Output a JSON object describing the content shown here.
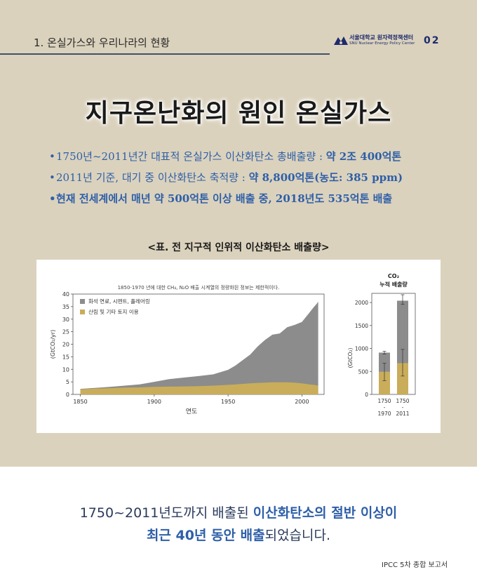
{
  "header": {
    "section_title": "1. 온실가스와 우리나라의 현황",
    "logo_ko": "서울대학교 원자력정책센터",
    "logo_en": "SNU Nuclear Energy Policy Center",
    "page_number": "02"
  },
  "main_title": "지구온난화의 원인 온실가스",
  "bullets": [
    {
      "normal": "1750년~2011년간 대표적 온실가스 이산화탄소 총배출량 : ",
      "bold": "약 2조 400억톤"
    },
    {
      "normal": "2011년 기준, 대기 중 이산화탄소 축적량 : ",
      "bold": "약 8,800억톤(농도: 385 ppm)"
    },
    {
      "normal": "",
      "bold": "현재 전세계에서 매년 약 500억톤 이상 배출 중, 2018년도 535억톤 배출"
    }
  ],
  "table_caption": "<표. 전 지구적 인위적 이산화탄소 배출량>",
  "chart_data": [
    {
      "type": "area",
      "title": "1850-1970 년에 대한 CH₄, N₂O 배출 시계열의 정량화된 정보는 제한적이다.",
      "xlabel": "연도",
      "ylabel": "(GtCO₂/yr)",
      "xlim": [
        1845,
        2015
      ],
      "ylim": [
        0,
        40
      ],
      "x_ticks": [
        "1850",
        "1900",
        "1950",
        "2000"
      ],
      "y_ticks": [
        "0",
        "5",
        "10",
        "15",
        "20",
        "25",
        "30",
        "35",
        "40"
      ],
      "legend": [
        "화석 연료, 시멘트, 플레어링",
        "산림 및 기타 토지 이용"
      ],
      "legend_position": "top-left",
      "colors": {
        "fossil": "#8c8c8c",
        "land": "#c9ad5a"
      },
      "x": [
        1850,
        1860,
        1870,
        1880,
        1890,
        1900,
        1910,
        1920,
        1930,
        1940,
        1950,
        1955,
        1960,
        1965,
        1970,
        1975,
        1980,
        1985,
        1990,
        1995,
        2000,
        2005,
        2008,
        2010,
        2011
      ],
      "series": [
        {
          "name": "산림 및 기타 토지 이용",
          "values": [
            2,
            2.3,
            2.5,
            2.7,
            2.8,
            3.0,
            3.1,
            3.2,
            3.3,
            3.5,
            3.8,
            4.0,
            4.2,
            4.4,
            4.6,
            4.7,
            4.8,
            4.8,
            4.8,
            4.7,
            4.4,
            4.0,
            3.8,
            3.6,
            3.5
          ]
        },
        {
          "name": "화석 연료, 시멘트, 플레어링",
          "values": [
            0.2,
            0.3,
            0.5,
            0.8,
            1.2,
            2.0,
            3.0,
            3.5,
            4.0,
            4.5,
            6.0,
            7.5,
            9.5,
            11.5,
            14.5,
            17.0,
            19.0,
            19.5,
            22.0,
            23.0,
            24.5,
            28.5,
            31.0,
            32.5,
            33.5
          ]
        }
      ]
    },
    {
      "type": "bar",
      "title": "CO₂ 누적 배출량",
      "ylabel": "(GtCO₂)",
      "ylim": [
        0,
        2200
      ],
      "y_ticks": [
        "0",
        "500",
        "1000",
        "1500",
        "2000"
      ],
      "categories": [
        [
          "1750",
          "-",
          "1970"
        ],
        [
          "1750",
          "-",
          "2011"
        ]
      ],
      "series": [
        {
          "name": "산림 및 기타 토지 이용",
          "values": [
            490,
            680
          ]
        },
        {
          "name": "화석 연료, 시멘트, 플레어링",
          "values": [
            420,
            1360
          ]
        }
      ],
      "error_total": [
        [
          880,
          940
        ],
        [
          1960,
          2170
        ]
      ],
      "error_land": [
        [
          300,
          680
        ],
        [
          400,
          980
        ]
      ]
    }
  ],
  "footer": {
    "line1_normal": "1750~2011년도까지 배출된 ",
    "line1_bold": "이산화탄소의 절반 이상이",
    "line2_bold": "최근 40년 동안 배출",
    "line2_normal": "되었습니다."
  },
  "source": "IPCC 5차 종합 보고서"
}
